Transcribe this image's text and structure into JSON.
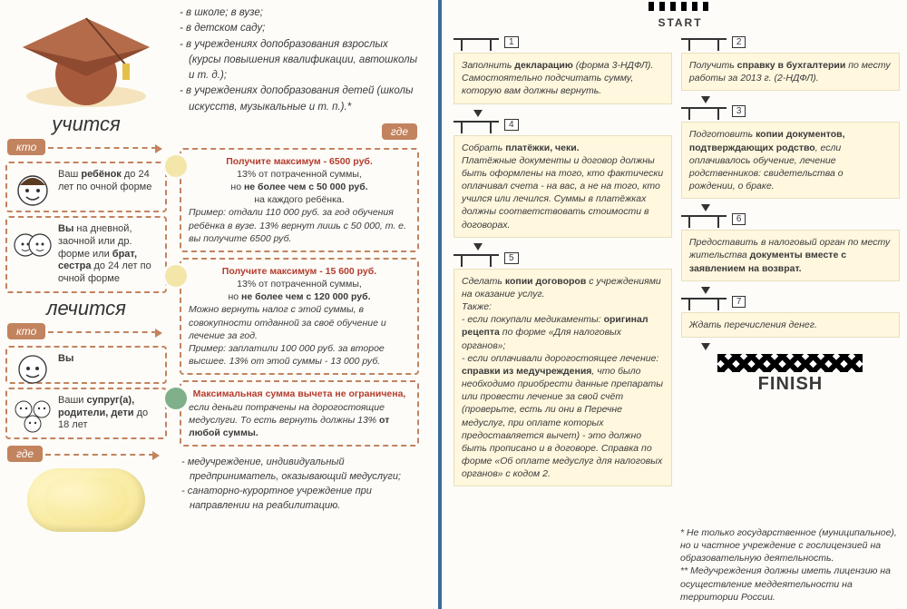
{
  "colors": {
    "accent": "#c2835f",
    "callout_head": "#b43c2e",
    "blue": "#3a6b9c",
    "step_bg": "#fff7de",
    "bg": "#fdfcf8"
  },
  "sections": {
    "study": "учится",
    "treat": "лечится"
  },
  "tags": {
    "who": "кто",
    "where": "где"
  },
  "where_study": [
    "- в школе; в вузе;",
    "- в детском саду;",
    "- в учреждениях допобразования взрослых (курсы повышения квалификации, автошколы и т. д.);",
    "- в учреждениях допобразования детей (школы искусств, музыкальные и т. п.).*"
  ],
  "who_study": [
    "Ваш <b>ребёнок</b> до 24 лет по очной форме",
    "<b>Вы</b> на дневной, заочной или др. форме или <b>брат, сестра</b> до 24 лет по очной форме"
  ],
  "who_treat": [
    "<b>Вы</b>",
    "Ваши <b>супруг(а), родители, дети</b> до 18 лет"
  ],
  "where_treat": [
    "- медучреждение, индивидуальный предприниматель, оказывающий медуслуги;",
    "- санаторно-курортное учреждение при направлении на реабилитацию."
  ],
  "callouts": [
    {
      "head": "Получите максимум - 6500 руб.",
      "sub": "13% от потраченной суммы,<br>но <b>не более чем с 50 000 руб.</b><br>на каждого ребёнка.",
      "body": "<i>Пример: отдали 110 000 руб. за год обучения ребёнка в вузе. 13% вернут лишь с 50 000, т. е. вы получите 6500 руб.</i>"
    },
    {
      "head": "Получите максимум - 15 600 руб.",
      "sub": "13% от потраченной суммы,<br>но <b>не более чем с 120 000 руб.</b>",
      "body": "Можно вернуть налог с этой суммы, в совокупности отданной за своё обучение и лечение за год.<br><i>Пример: заплатили 100 000 руб. за второе высшее. 13% от этой суммы - 13 000 руб.</i>"
    },
    {
      "head": "Максимальная сумма вычета не ограничена,",
      "sub": "",
      "body": "если деньги потрачены на дорогостоящие медуслуги. То есть вернуть должны 13% <b>от любой суммы.</b>"
    }
  ],
  "start": "START",
  "finish": "FINISH",
  "steps": [
    {
      "n": "1",
      "text": "Заполнить <b>декларацию</b> (форма 3-НДФЛ).<br>Самостоятельно подсчитать сумму, которую вам должны вернуть."
    },
    {
      "n": "2",
      "text": "Получить <b>справку в бухгалтерии</b> по месту работы за 2013 г. (2-НДФЛ)."
    },
    {
      "n": "3",
      "text": "Подготовить <b>копии документов, подтверждающих родство</b>, если оплачивалось обучение, лечение родственников: свидетельства о рождении, о браке."
    },
    {
      "n": "4",
      "text": "Собрать <b>платёжки, чеки.</b><br>Платёжные документы и договор должны быть оформлены на того, кто фактически оплачивал счета - на вас, а не на того, кто учился или лечился. Суммы в платёжках должны соответствовать стоимости в договорах."
    },
    {
      "n": "5",
      "text": "Сделать <b>копии договоров</b> с учреждениями на оказание услуг.<br>Также:<br>- если покупали медикаменты: <b>оригинал рецепта</b> по форме «Для налоговых органов»;<br>- если оплачивали дорогостоящее лечение: <b>справки из медучреждения</b>, что было необходимо приобрести данные препараты или провести лечение за свой счёт (проверьте, есть ли они в Перечне медуслуг, при оплате которых предоставляется вычет) - это должно быть прописано и в договоре. Справка по форме «Об оплате медуслуг для налоговых органов» с кодом 2."
    },
    {
      "n": "6",
      "text": "Предоставить в налоговый орган по месту жительства <b>документы вместе с заявлением на возврат.</b>"
    },
    {
      "n": "7",
      "text": "Ждать перечисления денег."
    }
  ],
  "footnotes": [
    "* Не только государственное (муниципальное), но и частное учреждение с гослицензией на образовательную деятельность.",
    "** Медучреждения должны иметь лицензию на осуществление меддеятельности на территории России."
  ]
}
